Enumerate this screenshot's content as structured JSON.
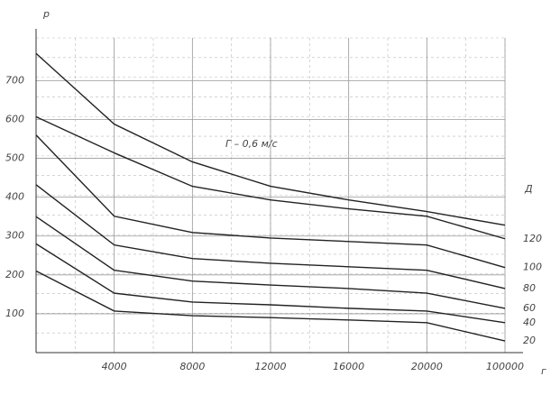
{
  "chart_data": {
    "type": "line",
    "y_label": "р",
    "x_label": "г",
    "right_label": "Д",
    "annotation": "Г – 0,6 м/с",
    "categories": [
      null,
      "4000",
      "8000",
      "12000",
      "16000",
      "20000",
      "100000"
    ],
    "ylim": [
      0,
      810
    ],
    "yticks": [
      100,
      200,
      300,
      400,
      500,
      600,
      700
    ],
    "grid": true,
    "series": [
      {
        "color": "#222",
        "values": [
          770,
          588,
          491,
          428,
          393,
          363,
          328
        ]
      },
      {
        "name": "120",
        "color": "#222",
        "values": [
          607,
          514,
          428,
          393,
          370,
          351,
          293
        ]
      },
      {
        "name": "100",
        "color": "#222",
        "values": [
          560,
          351,
          309,
          295,
          286,
          277,
          219
        ]
      },
      {
        "name": "80",
        "color": "#222",
        "values": [
          432,
          277,
          242,
          230,
          221,
          212,
          165
        ]
      },
      {
        "name": "60",
        "color": "#222",
        "values": [
          350,
          212,
          184,
          174,
          165,
          153,
          114
        ]
      },
      {
        "name": "40",
        "color": "#222",
        "values": [
          280,
          153,
          130,
          123,
          114,
          107,
          77
        ]
      },
      {
        "name": "20",
        "color": "#222",
        "values": [
          210,
          107,
          95,
          90,
          84,
          77,
          30
        ]
      }
    ]
  }
}
